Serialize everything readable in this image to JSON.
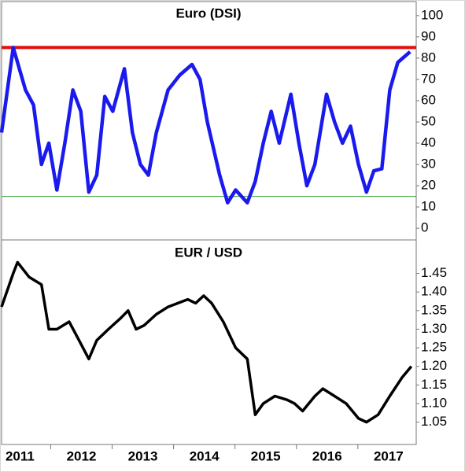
{
  "chart_data": [
    {
      "type": "line",
      "title": "Euro (DSI)",
      "x": [
        2011.2,
        2011.39,
        2011.59,
        2011.72,
        2011.85,
        2011.97,
        2012.1,
        2012.23,
        2012.36,
        2012.49,
        2012.62,
        2012.75,
        2012.88,
        2013.01,
        2013.2,
        2013.33,
        2013.46,
        2013.59,
        2013.72,
        2013.91,
        2014.1,
        2014.3,
        2014.43,
        2014.55,
        2014.75,
        2014.88,
        2015.01,
        2015.2,
        2015.33,
        2015.46,
        2015.59,
        2015.72,
        2015.91,
        2016.04,
        2016.17,
        2016.3,
        2016.49,
        2016.62,
        2016.75,
        2016.88,
        2017.01,
        2017.14,
        2017.26,
        2017.39,
        2017.52,
        2017.65,
        2017.85
      ],
      "series": [
        {
          "color": "#1a1aee",
          "values": [
            45,
            85,
            65,
            58,
            30,
            40,
            18,
            40,
            65,
            55,
            17,
            25,
            62,
            55,
            75,
            45,
            30,
            25,
            45,
            65,
            72,
            77,
            70,
            50,
            25,
            12,
            18,
            12,
            22,
            40,
            55,
            40,
            63,
            40,
            20,
            30,
            63,
            50,
            40,
            48,
            30,
            17,
            27,
            28,
            65,
            78,
            83
          ]
        }
      ],
      "reference_lines": [
        {
          "value": 85,
          "color": "#e01010"
        },
        {
          "value": 15,
          "color": "#2e9e2e"
        }
      ],
      "xlim": [
        2011.2,
        2017.95
      ],
      "ylim": [
        -5.5,
        106.6
      ],
      "yticks": [
        0,
        10,
        20,
        30,
        40,
        50,
        60,
        70,
        80,
        90,
        100
      ]
    },
    {
      "type": "line",
      "title": "EUR / USD",
      "x": [
        2011.2,
        2011.39,
        2011.46,
        2011.65,
        2011.85,
        2011.97,
        2012.1,
        2012.3,
        2012.43,
        2012.62,
        2012.75,
        2012.94,
        2013.14,
        2013.26,
        2013.39,
        2013.52,
        2013.72,
        2013.91,
        2014.23,
        2014.36,
        2014.49,
        2014.62,
        2014.81,
        2015.01,
        2015.2,
        2015.33,
        2015.46,
        2015.65,
        2015.85,
        2015.97,
        2016.1,
        2016.3,
        2016.43,
        2016.62,
        2016.81,
        2017.01,
        2017.14,
        2017.33,
        2017.52,
        2017.72,
        2017.87
      ],
      "series": [
        {
          "color": "#000000",
          "values": [
            1.36,
            1.45,
            1.48,
            1.44,
            1.42,
            1.3,
            1.3,
            1.32,
            1.28,
            1.22,
            1.27,
            1.3,
            1.33,
            1.35,
            1.3,
            1.31,
            1.34,
            1.36,
            1.38,
            1.37,
            1.39,
            1.37,
            1.32,
            1.25,
            1.22,
            1.07,
            1.1,
            1.12,
            1.11,
            1.1,
            1.08,
            1.12,
            1.14,
            1.12,
            1.1,
            1.06,
            1.05,
            1.07,
            1.12,
            1.17,
            1.2
          ]
        }
      ],
      "xlim": [
        2011.2,
        2017.95
      ],
      "ylim": [
        0.99,
        1.54
      ],
      "yticks": [
        {
          "value": 1.05,
          "label": "1.05"
        },
        {
          "value": 1.1,
          "label": "1.10"
        },
        {
          "value": 1.15,
          "label": "1.15"
        },
        {
          "value": 1.2,
          "label": "1.20"
        },
        {
          "value": 1.25,
          "label": "1.25"
        },
        {
          "value": 1.3,
          "label": "1.30"
        },
        {
          "value": 1.35,
          "label": "1.35"
        },
        {
          "value": 1.4,
          "label": "1.40"
        },
        {
          "value": 1.45,
          "label": "1.45"
        }
      ],
      "xticks": [
        2011,
        2012,
        2013,
        2014,
        2015,
        2016,
        2017
      ]
    }
  ]
}
